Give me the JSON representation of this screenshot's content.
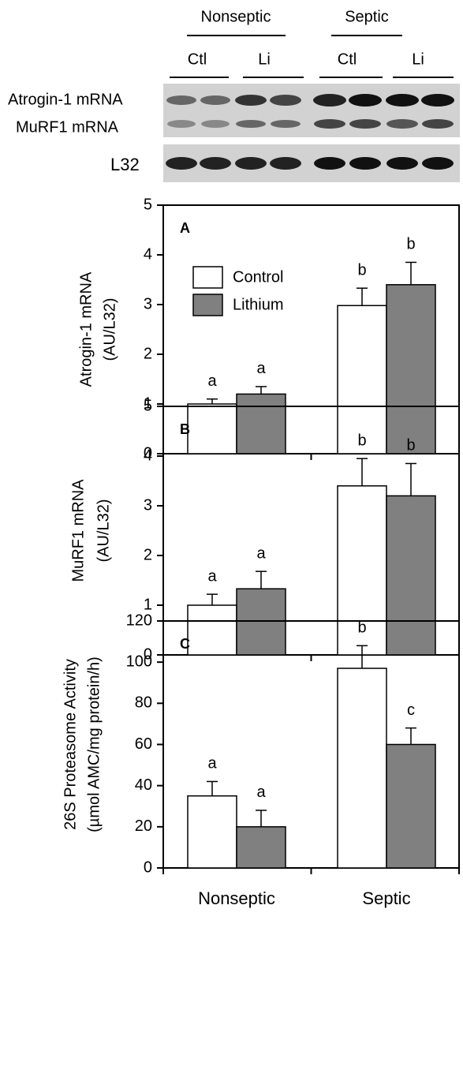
{
  "blot": {
    "groups": [
      "Nonseptic",
      "Septic"
    ],
    "lanes": [
      "Ctl",
      "Li",
      "Ctl",
      "Li"
    ],
    "bands": [
      "Atrogin-1 mRNA",
      "MuRF1 mRNA",
      "L32"
    ]
  },
  "chart_data": [
    {
      "type": "bar",
      "panel_label": "A",
      "ylabel": [
        "Atrogin-1 mRNA",
        "(AU/L32)"
      ],
      "categories": [
        null,
        null
      ],
      "series": [
        {
          "name": "Control",
          "color": "#ffffff",
          "values": [
            1.0,
            2.98
          ],
          "errors": [
            0.1,
            0.35
          ],
          "labels": [
            "a",
            "b"
          ]
        },
        {
          "name": "Lithium",
          "color": "#808080",
          "values": [
            1.2,
            3.4
          ],
          "errors": [
            0.15,
            0.45
          ],
          "labels": [
            "a",
            "b"
          ]
        }
      ],
      "ylim": [
        0,
        5
      ],
      "yticks": [
        0,
        1,
        2,
        3,
        4,
        5
      ],
      "legend": "upper left"
    },
    {
      "type": "bar",
      "panel_label": "B",
      "ylabel": [
        "MuRF1 mRNA",
        "(AU/L32)"
      ],
      "categories": [
        null,
        null
      ],
      "series": [
        {
          "color": "#ffffff",
          "values": [
            1.0,
            3.4
          ],
          "errors": [
            0.22,
            0.55
          ],
          "labels": [
            "a",
            "b"
          ]
        },
        {
          "color": "#808080",
          "values": [
            1.33,
            3.2
          ],
          "errors": [
            0.35,
            0.65
          ],
          "labels": [
            "a",
            "b"
          ]
        }
      ],
      "ylim": [
        0,
        5
      ],
      "yticks": [
        0,
        1,
        2,
        3,
        4,
        5
      ]
    },
    {
      "type": "bar",
      "panel_label": "C",
      "ylabel": [
        "26S Proteasome Activity",
        "(µmol AMC/mg protein/h)"
      ],
      "categories": [
        "Nonseptic",
        "Septic"
      ],
      "series": [
        {
          "color": "#ffffff",
          "values": [
            35,
            97
          ],
          "errors": [
            7,
            11
          ],
          "labels": [
            "a",
            "b"
          ]
        },
        {
          "color": "#808080",
          "values": [
            20,
            60
          ],
          "errors": [
            8,
            8
          ],
          "labels": [
            "a",
            "c"
          ]
        }
      ],
      "ylim": [
        0,
        120
      ],
      "yticks": [
        0,
        20,
        40,
        60,
        80,
        100,
        120
      ]
    }
  ]
}
